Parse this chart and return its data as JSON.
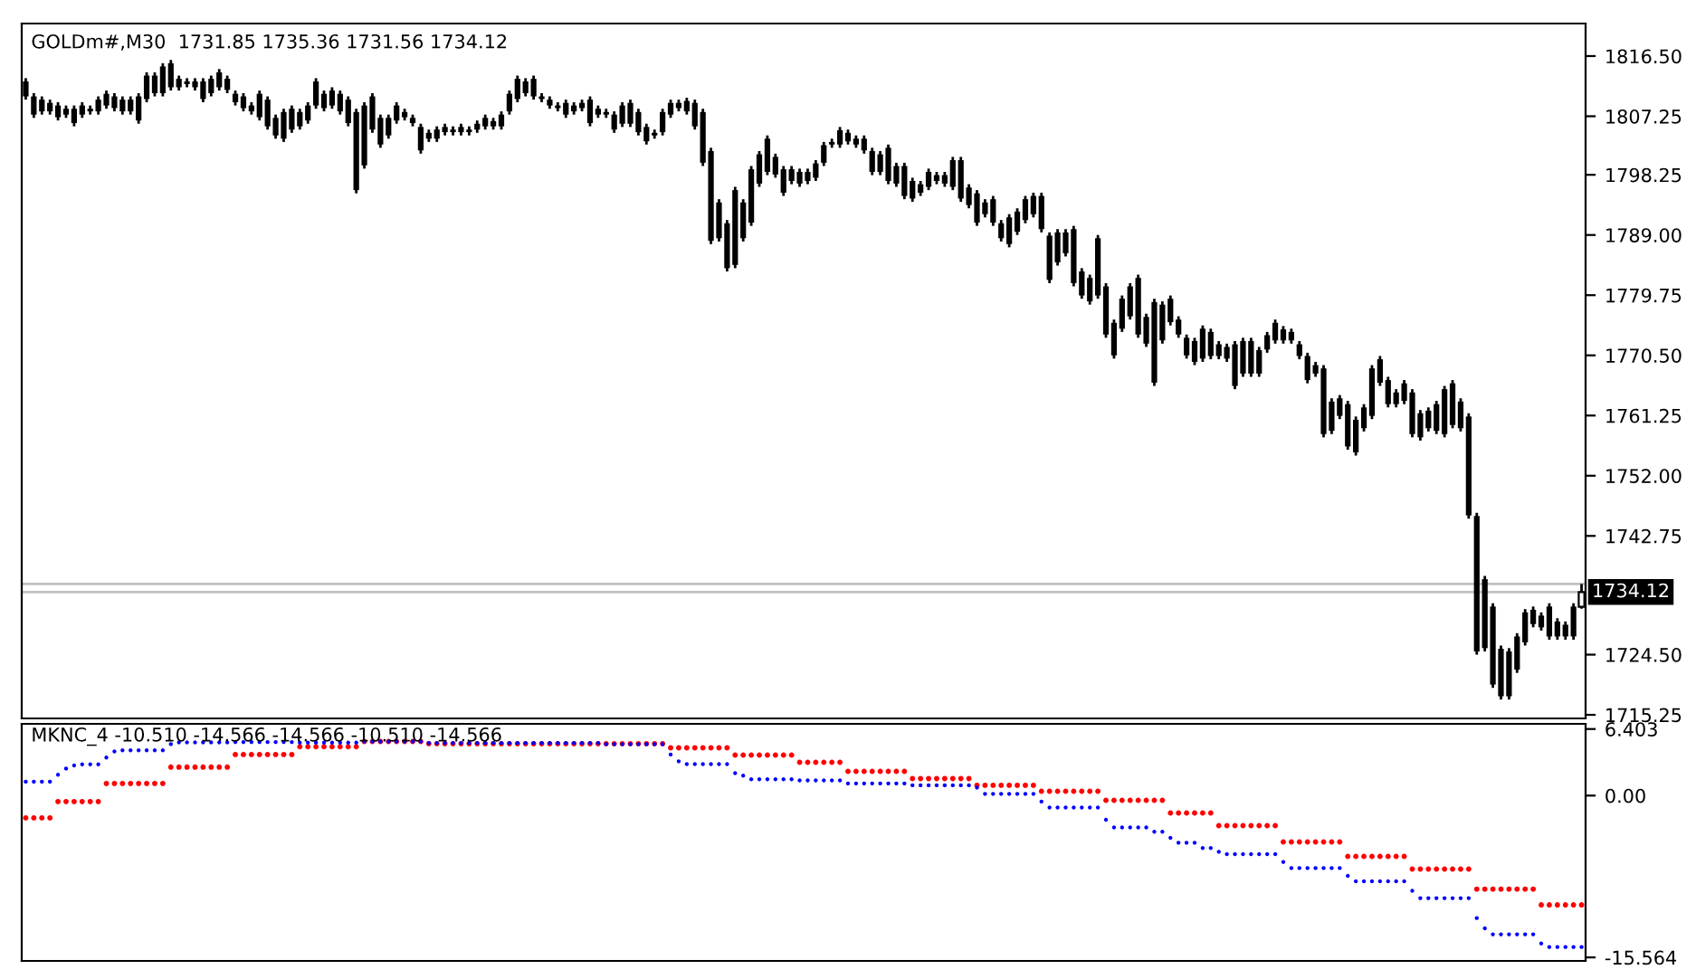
{
  "chart_data": [
    {
      "type": "candlestick",
      "title": "GOLDm#,M30  1731.85 1735.36 1731.56 1734.12",
      "color": "#000000",
      "tick_labels": "y",
      "categories": [
        null,
        null,
        null,
        null,
        null,
        null,
        null,
        null,
        null,
        null,
        null,
        null,
        null,
        null,
        null,
        null,
        null,
        null,
        null,
        null,
        null,
        null,
        null,
        null,
        null,
        null,
        null,
        null,
        null,
        null,
        null,
        null,
        null,
        null,
        null,
        null,
        null,
        null,
        null,
        null,
        null,
        null,
        null,
        null,
        null,
        null,
        null,
        null,
        null,
        null,
        null,
        null,
        null,
        null,
        null,
        null,
        null,
        null,
        null,
        null,
        null,
        null,
        null,
        null,
        null,
        null,
        null,
        null,
        null,
        null,
        null,
        null,
        null,
        null,
        null,
        null,
        null,
        null,
        null,
        null,
        null,
        null,
        null,
        null,
        null,
        null,
        null,
        null,
        null,
        null,
        null,
        null,
        null,
        null,
        null,
        null,
        null,
        null,
        null,
        null,
        null,
        null,
        null,
        null,
        null,
        null,
        null,
        null,
        null,
        null,
        null,
        null,
        null,
        null,
        null,
        null,
        null,
        null,
        null,
        null,
        null,
        null,
        null,
        null,
        null,
        null,
        null,
        null,
        null,
        null,
        null,
        null,
        null,
        null,
        null,
        null,
        null,
        null,
        null,
        null,
        null,
        null,
        null,
        null,
        null,
        null,
        null,
        null,
        null,
        null,
        null,
        null,
        null,
        null,
        null,
        null,
        null,
        null,
        null,
        null,
        null,
        null,
        null,
        null,
        null,
        null,
        null,
        null,
        null,
        null,
        null,
        null,
        null,
        null,
        null,
        null,
        null,
        null,
        null,
        null,
        null,
        null,
        null,
        null,
        null,
        null,
        null,
        null,
        null,
        null,
        null,
        null,
        null,
        null
      ],
      "ohlc": [
        [
          1812.6,
          1813.1,
          1809.8,
          1810.3
        ],
        [
          1810.3,
          1810.8,
          1807.0,
          1807.5
        ],
        [
          1809.8,
          1810.3,
          1807.5,
          1808.0
        ],
        [
          1809.3,
          1809.8,
          1807.5,
          1808.0
        ],
        [
          1808.9,
          1809.4,
          1806.6,
          1807.1
        ],
        [
          1808.4,
          1808.9,
          1807.0,
          1807.5
        ],
        [
          1808.4,
          1808.9,
          1805.7,
          1806.2
        ],
        [
          1808.9,
          1809.4,
          1807.0,
          1807.5
        ],
        [
          1808.4,
          1808.9,
          1807.5,
          1808.0
        ],
        [
          1809.8,
          1810.3,
          1807.5,
          1808.0
        ],
        [
          1810.7,
          1811.2,
          1808.4,
          1808.9
        ],
        [
          1810.3,
          1810.8,
          1808.0,
          1808.5
        ],
        [
          1809.8,
          1810.3,
          1807.5,
          1808.0
        ],
        [
          1809.8,
          1810.3,
          1807.5,
          1808.0
        ],
        [
          1810.3,
          1810.8,
          1806.1,
          1806.6
        ],
        [
          1813.5,
          1814.0,
          1809.4,
          1809.9
        ],
        [
          1813.5,
          1814.0,
          1810.3,
          1810.8
        ],
        [
          1814.9,
          1815.4,
          1810.3,
          1810.8
        ],
        [
          1815.4,
          1815.9,
          1811.2,
          1811.7
        ],
        [
          1813.0,
          1813.5,
          1811.2,
          1811.7
        ],
        [
          1812.6,
          1813.1,
          1811.7,
          1812.2
        ],
        [
          1812.6,
          1813.1,
          1811.2,
          1811.7
        ],
        [
          1812.6,
          1813.1,
          1809.4,
          1809.9
        ],
        [
          1813.0,
          1813.5,
          1810.3,
          1810.8
        ],
        [
          1814.0,
          1814.5,
          1811.2,
          1811.7
        ],
        [
          1813.0,
          1813.5,
          1810.8,
          1811.3
        ],
        [
          1810.7,
          1811.2,
          1808.9,
          1809.4
        ],
        [
          1810.3,
          1810.8,
          1808.0,
          1808.5
        ],
        [
          1808.9,
          1809.4,
          1807.5,
          1808.0
        ],
        [
          1810.7,
          1811.2,
          1806.6,
          1807.1
        ],
        [
          1809.8,
          1810.3,
          1805.2,
          1805.7
        ],
        [
          1807.0,
          1807.5,
          1803.8,
          1804.3
        ],
        [
          1807.9,
          1808.4,
          1803.3,
          1803.8
        ],
        [
          1808.4,
          1808.9,
          1804.7,
          1805.2
        ],
        [
          1807.9,
          1808.4,
          1805.2,
          1805.7
        ],
        [
          1808.9,
          1809.4,
          1806.1,
          1806.6
        ],
        [
          1812.6,
          1813.1,
          1808.4,
          1808.9
        ],
        [
          1810.7,
          1811.2,
          1808.0,
          1808.5
        ],
        [
          1811.2,
          1811.7,
          1808.4,
          1808.9
        ],
        [
          1810.7,
          1811.2,
          1807.5,
          1808.0
        ],
        [
          1809.8,
          1810.3,
          1805.7,
          1806.2
        ],
        [
          1807.9,
          1808.4,
          1795.4,
          1795.9
        ],
        [
          1808.9,
          1809.4,
          1799.2,
          1799.7
        ],
        [
          1810.3,
          1810.8,
          1804.7,
          1805.2
        ],
        [
          1807.0,
          1807.5,
          1802.4,
          1802.9
        ],
        [
          1807.0,
          1807.5,
          1803.8,
          1804.3
        ],
        [
          1808.9,
          1809.4,
          1806.1,
          1806.6
        ],
        [
          1807.9,
          1808.4,
          1806.6,
          1807.1
        ],
        [
          1807.0,
          1807.5,
          1805.7,
          1806.2
        ],
        [
          1805.6,
          1806.1,
          1801.5,
          1802.0
        ],
        [
          1804.7,
          1805.2,
          1803.3,
          1803.8
        ],
        [
          1805.2,
          1805.7,
          1803.3,
          1803.8
        ],
        [
          1805.6,
          1806.1,
          1804.3,
          1804.8
        ],
        [
          1805.2,
          1805.7,
          1804.3,
          1804.8
        ],
        [
          1805.6,
          1806.1,
          1804.3,
          1804.8
        ],
        [
          1805.2,
          1805.7,
          1804.3,
          1804.8
        ],
        [
          1806.1,
          1806.6,
          1804.7,
          1805.2
        ],
        [
          1807.0,
          1807.5,
          1805.2,
          1805.7
        ],
        [
          1806.5,
          1807.0,
          1805.2,
          1805.7
        ],
        [
          1807.5,
          1808.0,
          1805.2,
          1805.7
        ],
        [
          1810.7,
          1811.2,
          1807.5,
          1808.0
        ],
        [
          1813.0,
          1813.5,
          1809.4,
          1809.9
        ],
        [
          1812.6,
          1813.1,
          1810.3,
          1810.8
        ],
        [
          1813.0,
          1813.5,
          1809.8,
          1810.3
        ],
        [
          1810.3,
          1810.8,
          1809.4,
          1809.9
        ],
        [
          1809.8,
          1810.3,
          1808.4,
          1808.9
        ],
        [
          1808.9,
          1809.4,
          1808.0,
          1808.5
        ],
        [
          1809.3,
          1809.8,
          1807.0,
          1807.5
        ],
        [
          1808.9,
          1809.4,
          1807.5,
          1808.0
        ],
        [
          1809.3,
          1809.8,
          1808.0,
          1808.5
        ],
        [
          1809.8,
          1810.3,
          1805.7,
          1806.2
        ],
        [
          1808.4,
          1808.9,
          1807.0,
          1807.5
        ],
        [
          1807.9,
          1808.4,
          1807.0,
          1807.5
        ],
        [
          1807.5,
          1808.0,
          1804.7,
          1805.2
        ],
        [
          1808.9,
          1809.4,
          1805.6,
          1806.1
        ],
        [
          1809.3,
          1809.8,
          1805.6,
          1806.1
        ],
        [
          1807.9,
          1808.4,
          1804.3,
          1804.8
        ],
        [
          1805.6,
          1806.1,
          1802.9,
          1803.4
        ],
        [
          1804.7,
          1805.2,
          1803.8,
          1804.3
        ],
        [
          1807.9,
          1808.4,
          1804.3,
          1804.8
        ],
        [
          1809.3,
          1809.8,
          1807.0,
          1807.5
        ],
        [
          1809.3,
          1809.8,
          1808.0,
          1808.5
        ],
        [
          1809.6,
          1810.1,
          1807.5,
          1808.0
        ],
        [
          1809.3,
          1809.8,
          1805.2,
          1805.7
        ],
        [
          1807.9,
          1808.4,
          1799.6,
          1800.1
        ],
        [
          1801.9,
          1802.4,
          1787.6,
          1788.1
        ],
        [
          1794.0,
          1794.5,
          1788.0,
          1788.5
        ],
        [
          1790.8,
          1791.3,
          1783.4,
          1783.9
        ],
        [
          1795.9,
          1796.4,
          1783.9,
          1784.4
        ],
        [
          1794.0,
          1794.5,
          1788.0,
          1788.5
        ],
        [
          1799.1,
          1799.6,
          1790.4,
          1790.9
        ],
        [
          1801.4,
          1801.9,
          1796.4,
          1796.9
        ],
        [
          1803.8,
          1804.3,
          1798.2,
          1798.7
        ],
        [
          1801.0,
          1801.5,
          1797.8,
          1798.3
        ],
        [
          1799.1,
          1799.6,
          1795.0,
          1795.5
        ],
        [
          1799.1,
          1799.6,
          1796.8,
          1797.3
        ],
        [
          1798.7,
          1799.2,
          1796.4,
          1796.9
        ],
        [
          1798.7,
          1799.2,
          1796.8,
          1797.3
        ],
        [
          1800.0,
          1800.5,
          1797.3,
          1797.8
        ],
        [
          1802.8,
          1803.3,
          1799.6,
          1800.1
        ],
        [
          1803.3,
          1803.8,
          1802.4,
          1802.9
        ],
        [
          1805.1,
          1805.6,
          1802.4,
          1802.9
        ],
        [
          1804.7,
          1805.2,
          1802.9,
          1803.4
        ],
        [
          1803.8,
          1804.3,
          1802.4,
          1802.9
        ],
        [
          1803.8,
          1804.3,
          1801.5,
          1802.0
        ],
        [
          1801.9,
          1802.4,
          1798.2,
          1798.7
        ],
        [
          1801.4,
          1801.9,
          1798.2,
          1798.7
        ],
        [
          1802.4,
          1802.9,
          1796.8,
          1797.3
        ],
        [
          1799.6,
          1800.1,
          1796.4,
          1796.9
        ],
        [
          1799.6,
          1800.1,
          1794.5,
          1795.0
        ],
        [
          1797.3,
          1797.8,
          1794.1,
          1794.6
        ],
        [
          1796.8,
          1797.3,
          1795.0,
          1795.5
        ],
        [
          1798.7,
          1799.2,
          1795.9,
          1796.4
        ],
        [
          1798.2,
          1798.7,
          1796.8,
          1797.3
        ],
        [
          1798.2,
          1798.7,
          1796.4,
          1796.9
        ],
        [
          1800.5,
          1801.0,
          1795.9,
          1796.4
        ],
        [
          1800.5,
          1801.0,
          1794.1,
          1794.6
        ],
        [
          1796.3,
          1796.8,
          1793.1,
          1793.6
        ],
        [
          1795.4,
          1795.9,
          1790.4,
          1790.9
        ],
        [
          1794.0,
          1794.5,
          1791.7,
          1792.2
        ],
        [
          1794.5,
          1795.0,
          1790.4,
          1790.9
        ],
        [
          1790.8,
          1791.3,
          1788.0,
          1788.5
        ],
        [
          1791.7,
          1792.2,
          1787.1,
          1787.6
        ],
        [
          1792.6,
          1793.1,
          1789.0,
          1789.5
        ],
        [
          1794.5,
          1795.0,
          1790.8,
          1791.3
        ],
        [
          1795.0,
          1795.5,
          1791.7,
          1792.2
        ],
        [
          1795.0,
          1795.5,
          1789.4,
          1789.9
        ],
        [
          1788.9,
          1789.4,
          1781.6,
          1782.1
        ],
        [
          1789.4,
          1789.9,
          1784.3,
          1784.8
        ],
        [
          1789.4,
          1789.9,
          1785.7,
          1786.2
        ],
        [
          1789.9,
          1790.4,
          1781.1,
          1781.6
        ],
        [
          1783.4,
          1783.9,
          1779.2,
          1779.7
        ],
        [
          1782.4,
          1782.9,
          1778.3,
          1778.8
        ],
        [
          1788.5,
          1789.0,
          1779.2,
          1779.7
        ],
        [
          1781.1,
          1781.6,
          1773.2,
          1773.7
        ],
        [
          1775.5,
          1776.0,
          1770.0,
          1770.5
        ],
        [
          1779.2,
          1779.7,
          1774.1,
          1774.6
        ],
        [
          1781.1,
          1781.6,
          1776.0,
          1776.5
        ],
        [
          1782.4,
          1782.9,
          1773.2,
          1773.7
        ],
        [
          1776.4,
          1776.9,
          1771.8,
          1772.3
        ],
        [
          1778.7,
          1779.2,
          1765.8,
          1766.3
        ],
        [
          1778.3,
          1778.8,
          1772.3,
          1772.8
        ],
        [
          1779.2,
          1779.7,
          1775.1,
          1775.6
        ],
        [
          1776.0,
          1776.5,
          1773.2,
          1773.7
        ],
        [
          1773.2,
          1773.7,
          1770.0,
          1770.5
        ],
        [
          1772.7,
          1773.2,
          1769.0,
          1769.5
        ],
        [
          1774.6,
          1775.1,
          1769.5,
          1770.0
        ],
        [
          1774.1,
          1774.6,
          1769.9,
          1770.4
        ],
        [
          1772.2,
          1772.7,
          1769.9,
          1770.4
        ],
        [
          1771.8,
          1772.3,
          1769.5,
          1770.0
        ],
        [
          1772.2,
          1772.7,
          1765.3,
          1765.8
        ],
        [
          1772.7,
          1773.2,
          1767.2,
          1767.7
        ],
        [
          1772.7,
          1773.2,
          1767.2,
          1767.7
        ],
        [
          1771.3,
          1771.8,
          1767.2,
          1767.7
        ],
        [
          1773.6,
          1774.1,
          1770.9,
          1771.4
        ],
        [
          1775.5,
          1776.0,
          1772.3,
          1772.8
        ],
        [
          1774.5,
          1775.0,
          1772.3,
          1772.8
        ],
        [
          1774.1,
          1774.6,
          1772.3,
          1772.8
        ],
        [
          1772.2,
          1772.7,
          1769.9,
          1770.4
        ],
        [
          1770.4,
          1770.9,
          1766.2,
          1766.7
        ],
        [
          1769.0,
          1769.5,
          1767.2,
          1767.7
        ],
        [
          1768.5,
          1769.0,
          1757.9,
          1758.4
        ],
        [
          1763.4,
          1763.9,
          1758.4,
          1758.9
        ],
        [
          1763.9,
          1764.4,
          1760.7,
          1761.2
        ],
        [
          1763.0,
          1763.5,
          1756.0,
          1756.5
        ],
        [
          1760.6,
          1761.1,
          1755.1,
          1755.6
        ],
        [
          1762.5,
          1763.0,
          1758.8,
          1759.3
        ],
        [
          1768.5,
          1769.0,
          1760.7,
          1761.2
        ],
        [
          1769.9,
          1770.4,
          1765.8,
          1766.3
        ],
        [
          1766.7,
          1767.2,
          1762.5,
          1763.0
        ],
        [
          1764.8,
          1765.3,
          1762.5,
          1763.0
        ],
        [
          1766.2,
          1766.7,
          1763.0,
          1763.5
        ],
        [
          1764.8,
          1765.3,
          1757.9,
          1758.4
        ],
        [
          1761.6,
          1762.1,
          1757.4,
          1757.9
        ],
        [
          1762.0,
          1762.5,
          1758.8,
          1759.3
        ],
        [
          1763.0,
          1763.5,
          1758.4,
          1758.9
        ],
        [
          1765.3,
          1765.8,
          1757.9,
          1758.4
        ],
        [
          1766.2,
          1766.7,
          1759.3,
          1759.8
        ],
        [
          1763.4,
          1763.9,
          1758.8,
          1759.3
        ],
        [
          1761.1,
          1761.6,
          1745.4,
          1745.9
        ],
        [
          1745.8,
          1746.3,
          1724.5,
          1725.0
        ],
        [
          1736.1,
          1736.6,
          1725.0,
          1725.5
        ],
        [
          1731.9,
          1732.4,
          1719.4,
          1719.9
        ],
        [
          1725.4,
          1725.9,
          1717.6,
          1718.1
        ],
        [
          1725.0,
          1725.5,
          1717.6,
          1718.1
        ],
        [
          1727.3,
          1727.8,
          1721.7,
          1722.2
        ],
        [
          1731.0,
          1731.5,
          1725.9,
          1726.4
        ],
        [
          1731.4,
          1731.9,
          1728.7,
          1729.2
        ],
        [
          1730.5,
          1731.0,
          1728.2,
          1728.7
        ],
        [
          1731.9,
          1732.4,
          1726.8,
          1727.3
        ],
        [
          1729.6,
          1730.1,
          1726.8,
          1727.3
        ],
        [
          1729.1,
          1729.6,
          1726.8,
          1727.3
        ],
        [
          1731.9,
          1732.4,
          1726.8,
          1727.3
        ],
        [
          1731.85,
          1735.36,
          1731.56,
          1734.12
        ]
      ],
      "ylim": [
        1714.7,
        1821.5
      ],
      "yticks": [
        {
          "value": 1816.5,
          "label": "1816.50"
        },
        {
          "value": 1807.25,
          "label": "1807.25"
        },
        {
          "value": 1798.25,
          "label": "1798.25"
        },
        {
          "value": 1789.0,
          "label": "1789.00"
        },
        {
          "value": 1779.75,
          "label": "1779.75"
        },
        {
          "value": 1770.5,
          "label": "1770.50"
        },
        {
          "value": 1761.25,
          "label": "1761.25"
        },
        {
          "value": 1752.0,
          "label": "1752.00"
        },
        {
          "value": 1742.75,
          "label": "1742.75"
        },
        {
          "value": 1724.5,
          "label": "1724.50"
        },
        {
          "value": 1715.25,
          "label": "1715.25"
        }
      ],
      "ref_lines": [
        {
          "axis": "y",
          "value": 1735.36,
          "color": "#c0c0c0"
        },
        {
          "axis": "y",
          "value": 1734.12,
          "label": "1734.12",
          "color": "#c0c0c0"
        }
      ]
    },
    {
      "type": "scatter",
      "title": "MKNC_4 -10.510 -14.566 -14.566 -10.510 -14.566",
      "marker": "circle",
      "tick_labels": "y",
      "categories": [
        null,
        null,
        null,
        null,
        null,
        null,
        null,
        null,
        null,
        null,
        null,
        null,
        null,
        null,
        null,
        null,
        null,
        null,
        null,
        null,
        null,
        null,
        null,
        null,
        null,
        null,
        null,
        null,
        null,
        null,
        null,
        null,
        null,
        null,
        null,
        null,
        null,
        null,
        null,
        null,
        null,
        null,
        null,
        null,
        null,
        null,
        null,
        null,
        null,
        null,
        null,
        null,
        null,
        null,
        null,
        null,
        null,
        null,
        null,
        null,
        null,
        null,
        null,
        null,
        null,
        null,
        null,
        null,
        null,
        null,
        null,
        null,
        null,
        null,
        null,
        null,
        null,
        null,
        null,
        null,
        null,
        null,
        null,
        null,
        null,
        null,
        null,
        null,
        null,
        null,
        null,
        null,
        null,
        null,
        null,
        null,
        null,
        null,
        null,
        null,
        null,
        null,
        null,
        null,
        null,
        null,
        null,
        null,
        null,
        null,
        null,
        null,
        null,
        null,
        null,
        null,
        null,
        null,
        null,
        null,
        null,
        null,
        null,
        null,
        null,
        null,
        null,
        null,
        null,
        null,
        null,
        null,
        null,
        null,
        null,
        null,
        null,
        null,
        null,
        null,
        null,
        null,
        null,
        null,
        null,
        null,
        null,
        null,
        null,
        null,
        null,
        null,
        null,
        null,
        null,
        null,
        null,
        null,
        null,
        null,
        null,
        null,
        null,
        null,
        null,
        null,
        null,
        null,
        null,
        null,
        null,
        null,
        null,
        null,
        null,
        null,
        null,
        null,
        null,
        null,
        null,
        null,
        null,
        null,
        null,
        null,
        null,
        null,
        null,
        null,
        null,
        null,
        null,
        null
      ],
      "series": [
        {
          "color": "#ff0000",
          "values": [
            -2.14,
            -2.14,
            -2.14,
            -2.14,
            -0.57,
            -0.57,
            -0.57,
            -0.57,
            -0.57,
            -0.57,
            1.17,
            1.17,
            1.17,
            1.17,
            1.17,
            1.17,
            1.17,
            1.17,
            2.74,
            2.74,
            2.74,
            2.74,
            2.74,
            2.74,
            2.74,
            2.74,
            3.95,
            3.95,
            3.95,
            3.95,
            3.95,
            3.95,
            3.95,
            3.95,
            4.7,
            4.7,
            4.7,
            4.7,
            4.7,
            4.7,
            4.7,
            4.7,
            5.2,
            5.2,
            5.2,
            5.2,
            5.2,
            5.2,
            5.2,
            5.2,
            5.0,
            5.0,
            5.0,
            5.0,
            5.0,
            5.0,
            5.0,
            5.0,
            5.0,
            5.0,
            5.0,
            5.0,
            5.0,
            5.0,
            5.0,
            5.0,
            5.0,
            5.0,
            5.0,
            5.0,
            5.0,
            5.0,
            5.0,
            5.0,
            5.0,
            5.0,
            5.0,
            5.0,
            5.0,
            5.0,
            4.6,
            4.6,
            4.6,
            4.6,
            4.6,
            4.6,
            4.6,
            4.6,
            3.9,
            3.9,
            3.9,
            3.9,
            3.9,
            3.9,
            3.9,
            3.9,
            3.2,
            3.2,
            3.2,
            3.2,
            3.2,
            3.2,
            2.33,
            2.33,
            2.33,
            2.33,
            2.33,
            2.33,
            2.33,
            2.33,
            1.64,
            1.64,
            1.64,
            1.64,
            1.64,
            1.64,
            1.64,
            1.64,
            0.99,
            0.99,
            0.99,
            0.99,
            0.99,
            0.99,
            0.99,
            0.99,
            0.42,
            0.42,
            0.42,
            0.42,
            0.42,
            0.42,
            0.42,
            0.42,
            -0.45,
            -0.45,
            -0.45,
            -0.45,
            -0.45,
            -0.45,
            -0.45,
            -0.45,
            -1.67,
            -1.67,
            -1.67,
            -1.67,
            -1.67,
            -1.67,
            -2.89,
            -2.89,
            -2.89,
            -2.89,
            -2.89,
            -2.89,
            -2.89,
            -2.89,
            -4.46,
            -4.46,
            -4.46,
            -4.46,
            -4.46,
            -4.46,
            -4.46,
            -4.46,
            -5.85,
            -5.85,
            -5.85,
            -5.85,
            -5.85,
            -5.85,
            -5.85,
            -5.85,
            -7.07,
            -7.07,
            -7.07,
            -7.07,
            -7.07,
            -7.07,
            -7.07,
            -7.07,
            -8.99,
            -8.99,
            -8.99,
            -8.99,
            -8.99,
            -8.99,
            -8.99,
            -8.99,
            -10.51,
            -10.51,
            -10.51,
            -10.51,
            -10.51,
            -10.51
          ]
        },
        {
          "color": "#0000ff",
          "values": [
            1.34,
            1.34,
            1.34,
            1.34,
            2.0,
            2.6,
            2.9,
            3.0,
            3.0,
            3.0,
            3.66,
            4.25,
            4.36,
            4.36,
            4.36,
            4.36,
            4.36,
            4.36,
            4.95,
            5.12,
            5.12,
            5.12,
            5.12,
            5.12,
            5.12,
            5.12,
            5.15,
            5.15,
            5.15,
            5.15,
            5.15,
            5.15,
            5.15,
            5.15,
            5.1,
            5.1,
            5.1,
            5.1,
            5.1,
            5.1,
            5.1,
            5.1,
            5.2,
            5.2,
            5.2,
            5.2,
            5.2,
            5.2,
            5.2,
            5.2,
            5.05,
            5.05,
            5.05,
            5.05,
            5.05,
            5.05,
            5.05,
            5.05,
            5.05,
            5.05,
            5.05,
            5.05,
            5.05,
            5.05,
            5.05,
            5.05,
            5.05,
            5.05,
            5.05,
            5.05,
            5.05,
            5.05,
            4.95,
            4.95,
            4.95,
            4.95,
            4.95,
            4.95,
            4.95,
            4.95,
            3.95,
            3.3,
            3.03,
            3.03,
            3.03,
            3.03,
            3.03,
            3.03,
            2.16,
            1.92,
            1.57,
            1.57,
            1.57,
            1.57,
            1.57,
            1.57,
            1.46,
            1.46,
            1.46,
            1.46,
            1.46,
            1.46,
            1.17,
            1.17,
            1.17,
            1.17,
            1.17,
            1.17,
            1.17,
            1.17,
            0.99,
            0.99,
            0.99,
            0.99,
            0.99,
            0.99,
            0.99,
            0.99,
            0.77,
            0.17,
            0.17,
            0.17,
            0.17,
            0.17,
            0.17,
            0.17,
            -0.57,
            -1.15,
            -1.15,
            -1.15,
            -1.15,
            -1.15,
            -1.15,
            -1.15,
            -2.32,
            -3.07,
            -3.07,
            -3.07,
            -3.07,
            -3.07,
            -3.48,
            -3.48,
            -4.06,
            -4.53,
            -4.53,
            -4.53,
            -5.05,
            -5.05,
            -5.4,
            -5.63,
            -5.63,
            -5.63,
            -5.63,
            -5.63,
            -5.63,
            -5.63,
            -6.38,
            -6.97,
            -6.97,
            -6.97,
            -6.97,
            -6.97,
            -6.97,
            -6.97,
            -7.72,
            -8.24,
            -8.24,
            -8.24,
            -8.24,
            -8.24,
            -8.24,
            -8.24,
            -9.16,
            -9.86,
            -9.86,
            -9.86,
            -9.86,
            -9.86,
            -9.86,
            -9.86,
            -11.78,
            -12.77,
            -13.34,
            -13.34,
            -13.34,
            -13.34,
            -13.34,
            -13.34,
            -14.22,
            -14.566,
            -14.566,
            -14.566,
            -14.566,
            -14.566
          ]
        }
      ],
      "ylim": [
        -15.9,
        6.9
      ],
      "yticks": [
        6.403,
        {
          "value": 0,
          "label": "0.00"
        },
        -15.564
      ]
    }
  ]
}
